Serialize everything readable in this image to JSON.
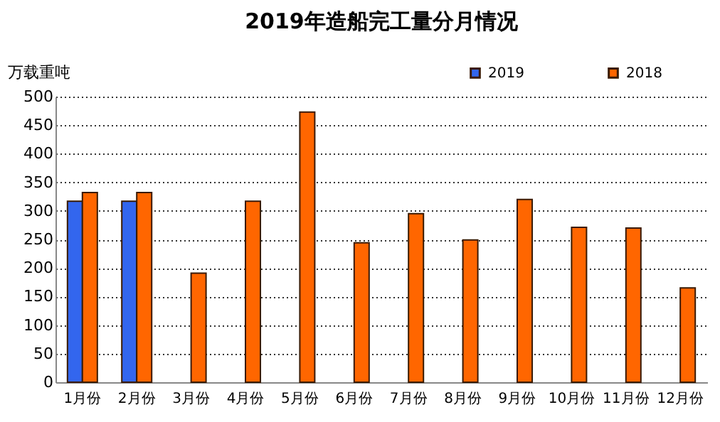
{
  "chart_data": {
    "type": "bar",
    "title": "2019年造船完工量分月情况",
    "ylabel": "万载重吨",
    "categories": [
      "1月份",
      "2月份",
      "3月份",
      "4月份",
      "5月份",
      "6月份",
      "7月份",
      "8月份",
      "9月份",
      "10月份",
      "11月份",
      "12月份"
    ],
    "series": [
      {
        "name": "2019",
        "color": "#3366ee",
        "values": [
          317,
          317,
          null,
          null,
          null,
          null,
          null,
          null,
          null,
          null,
          null,
          null
        ]
      },
      {
        "name": "2018",
        "color": "#ff6600",
        "values": [
          332,
          332,
          191,
          317,
          473,
          244,
          295,
          249,
          320,
          271,
          270,
          165
        ]
      }
    ],
    "ylim": [
      0,
      500
    ],
    "yticks": [
      0,
      50,
      100,
      150,
      200,
      250,
      300,
      350,
      400,
      450,
      500
    ],
    "grid": "y",
    "legend": "top right"
  }
}
